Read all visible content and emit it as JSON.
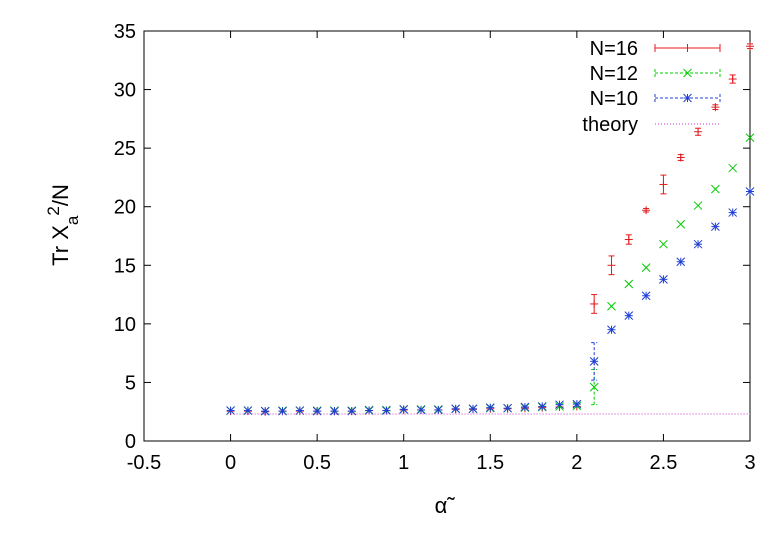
{
  "chart_data": {
    "type": "scatter",
    "xlabel": "α̃",
    "ylabel": "Tr X_a^2/N",
    "xlim": [
      -0.5,
      3
    ],
    "ylim": [
      0,
      35
    ],
    "xticks": [
      "-0.5",
      "0",
      "0.5",
      "1",
      "1.5",
      "2",
      "2.5",
      "3"
    ],
    "yticks": [
      "0",
      "5",
      "10",
      "15",
      "20",
      "25",
      "30",
      "35"
    ],
    "legend_position": "top-right",
    "grid": false,
    "series": [
      {
        "name": "N=16",
        "color": "#e41a1c",
        "marker": "plus",
        "points": [
          {
            "x": 0.0,
            "y": 2.55
          },
          {
            "x": 0.1,
            "y": 2.55
          },
          {
            "x": 0.2,
            "y": 2.5
          },
          {
            "x": 0.3,
            "y": 2.55
          },
          {
            "x": 0.4,
            "y": 2.55
          },
          {
            "x": 0.5,
            "y": 2.55
          },
          {
            "x": 0.6,
            "y": 2.55
          },
          {
            "x": 0.7,
            "y": 2.55
          },
          {
            "x": 0.8,
            "y": 2.6
          },
          {
            "x": 0.9,
            "y": 2.6
          },
          {
            "x": 1.0,
            "y": 2.65
          },
          {
            "x": 1.1,
            "y": 2.65
          },
          {
            "x": 1.2,
            "y": 2.65
          },
          {
            "x": 1.3,
            "y": 2.7
          },
          {
            "x": 1.4,
            "y": 2.7
          },
          {
            "x": 1.5,
            "y": 2.75
          },
          {
            "x": 1.6,
            "y": 2.75
          },
          {
            "x": 1.7,
            "y": 2.8
          },
          {
            "x": 1.8,
            "y": 2.85
          },
          {
            "x": 1.9,
            "y": 2.9
          },
          {
            "x": 2.0,
            "y": 2.95
          },
          {
            "x": 2.1,
            "y": 11.7,
            "err": 0.8
          },
          {
            "x": 2.2,
            "y": 15.0,
            "err": 0.8
          },
          {
            "x": 2.3,
            "y": 17.2,
            "err": 0.4
          },
          {
            "x": 2.4,
            "y": 19.7,
            "err": 0.15
          },
          {
            "x": 2.5,
            "y": 21.9,
            "err": 0.8
          },
          {
            "x": 2.6,
            "y": 24.2,
            "err": 0.25
          },
          {
            "x": 2.7,
            "y": 26.4,
            "err": 0.3
          },
          {
            "x": 2.8,
            "y": 28.5,
            "err": 0.2
          },
          {
            "x": 2.9,
            "y": 30.9,
            "err": 0.35
          },
          {
            "x": 3.0,
            "y": 33.7,
            "err": 0.2
          }
        ]
      },
      {
        "name": "N=12",
        "color": "#00cc00",
        "marker": "cross",
        "points": [
          {
            "x": 0.0,
            "y": 2.6
          },
          {
            "x": 0.1,
            "y": 2.6
          },
          {
            "x": 0.2,
            "y": 2.55
          },
          {
            "x": 0.3,
            "y": 2.6
          },
          {
            "x": 0.4,
            "y": 2.6
          },
          {
            "x": 0.5,
            "y": 2.6
          },
          {
            "x": 0.6,
            "y": 2.6
          },
          {
            "x": 0.7,
            "y": 2.6
          },
          {
            "x": 0.8,
            "y": 2.65
          },
          {
            "x": 0.9,
            "y": 2.65
          },
          {
            "x": 1.0,
            "y": 2.7
          },
          {
            "x": 1.1,
            "y": 2.7
          },
          {
            "x": 1.2,
            "y": 2.7
          },
          {
            "x": 1.3,
            "y": 2.75
          },
          {
            "x": 1.4,
            "y": 2.75
          },
          {
            "x": 1.5,
            "y": 2.8
          },
          {
            "x": 1.6,
            "y": 2.8
          },
          {
            "x": 1.7,
            "y": 2.85
          },
          {
            "x": 1.8,
            "y": 2.9
          },
          {
            "x": 1.9,
            "y": 2.95
          },
          {
            "x": 2.0,
            "y": 3.0
          },
          {
            "x": 2.1,
            "y": 4.6,
            "err": 1.5
          },
          {
            "x": 2.2,
            "y": 11.5
          },
          {
            "x": 2.3,
            "y": 13.4
          },
          {
            "x": 2.4,
            "y": 14.8
          },
          {
            "x": 2.5,
            "y": 16.8
          },
          {
            "x": 2.6,
            "y": 18.5
          },
          {
            "x": 2.7,
            "y": 20.1
          },
          {
            "x": 2.8,
            "y": 21.5
          },
          {
            "x": 2.9,
            "y": 23.3
          },
          {
            "x": 3.0,
            "y": 25.9
          }
        ]
      },
      {
        "name": "N=10",
        "color": "#1f3fd6",
        "marker": "star",
        "points": [
          {
            "x": 0.0,
            "y": 2.6
          },
          {
            "x": 0.1,
            "y": 2.6
          },
          {
            "x": 0.2,
            "y": 2.55
          },
          {
            "x": 0.3,
            "y": 2.55
          },
          {
            "x": 0.4,
            "y": 2.6
          },
          {
            "x": 0.5,
            "y": 2.55
          },
          {
            "x": 0.6,
            "y": 2.55
          },
          {
            "x": 0.7,
            "y": 2.55
          },
          {
            "x": 0.8,
            "y": 2.6
          },
          {
            "x": 0.9,
            "y": 2.6
          },
          {
            "x": 1.0,
            "y": 2.7
          },
          {
            "x": 1.1,
            "y": 2.65
          },
          {
            "x": 1.2,
            "y": 2.65
          },
          {
            "x": 1.3,
            "y": 2.75
          },
          {
            "x": 1.4,
            "y": 2.75
          },
          {
            "x": 1.5,
            "y": 2.85
          },
          {
            "x": 1.6,
            "y": 2.8
          },
          {
            "x": 1.7,
            "y": 2.9
          },
          {
            "x": 1.8,
            "y": 2.95
          },
          {
            "x": 1.9,
            "y": 3.1
          },
          {
            "x": 2.0,
            "y": 3.15
          },
          {
            "x": 2.1,
            "y": 6.8,
            "err": 1.6
          },
          {
            "x": 2.2,
            "y": 9.5
          },
          {
            "x": 2.3,
            "y": 10.7
          },
          {
            "x": 2.4,
            "y": 12.4
          },
          {
            "x": 2.5,
            "y": 13.8
          },
          {
            "x": 2.6,
            "y": 15.3
          },
          {
            "x": 2.7,
            "y": 16.8
          },
          {
            "x": 2.8,
            "y": 18.3
          },
          {
            "x": 2.9,
            "y": 19.5
          },
          {
            "x": 3.0,
            "y": 21.3
          }
        ]
      },
      {
        "name": "theory",
        "color": "#cc33cc",
        "marker": "line",
        "line": [
          {
            "x": 0.0,
            "y": 2.3
          },
          {
            "x": 3.0,
            "y": 2.3
          }
        ]
      }
    ]
  }
}
